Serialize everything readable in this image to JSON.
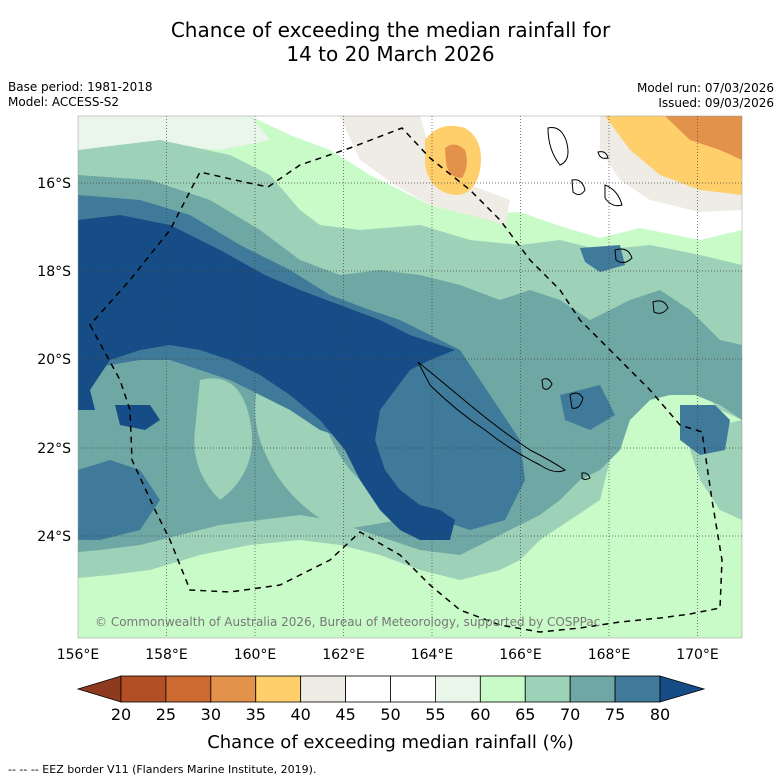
{
  "title_line1": "Chance of exceeding the median rainfall for",
  "title_line2": "14 to 20 March 2026",
  "base_period": "Base period: 1981-2018",
  "model": "Model: ACCESS-S2",
  "model_run": "Model run: 07/03/2026",
  "issued": "Issued: 09/03/2026",
  "copyright": "© Commonwealth of Australia 2026, Bureau of Meteorology, supported by COSPPac",
  "lon_labels": [
    "156°E",
    "158°E",
    "160°E",
    "162°E",
    "164°E",
    "166°E",
    "168°E",
    "170°E"
  ],
  "lat_labels": [
    "16°S",
    "18°S",
    "20°S",
    "22°S",
    "24°S"
  ],
  "colorbar": {
    "ticks": [
      "20",
      "25",
      "30",
      "35",
      "40",
      "45",
      "50",
      "55",
      "60",
      "65",
      "70",
      "75",
      "80"
    ],
    "colors": [
      "#8e3a1e",
      "#b34f24",
      "#cc6a32",
      "#e2924a",
      "#fecf6b",
      "#efece6",
      "#ffffff",
      "#ffffff",
      "#eaf6ea",
      "#c9fbc9",
      "#9dd2b8",
      "#6fa7a5",
      "#3f7a9a",
      "#164d86"
    ],
    "label": "Chance of exceeding median rainfall (%)"
  },
  "footer": "--  --  -- EEZ border V11 (Flanders Marine Institute, 2019)."
}
